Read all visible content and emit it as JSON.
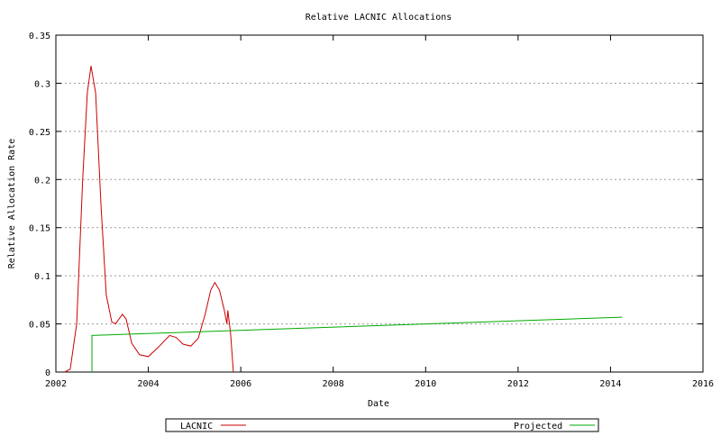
{
  "chart_data": {
    "type": "line",
    "title": "Relative LACNIC Allocations",
    "x_label": "Date",
    "y_label": "Relative Allocation Rate",
    "xlim": [
      2002,
      2016
    ],
    "xticks": [
      2002,
      2004,
      2006,
      2008,
      2010,
      2012,
      2014,
      2016
    ],
    "ylim": [
      0,
      0.35
    ],
    "yticks": [
      0,
      0.05,
      0.1,
      0.15,
      0.2,
      0.25,
      0.3,
      0.35
    ],
    "grid": true,
    "legend": "bottom",
    "series": [
      {
        "name": "LACNIC",
        "color": "#cc0000",
        "x": [
          2002.19,
          2002.31,
          2002.45,
          2002.58,
          2002.68,
          2002.76,
          2002.86,
          2002.98,
          2003.09,
          2003.21,
          2003.29,
          2003.44,
          2003.52,
          2003.64,
          2003.81,
          2004.0,
          2004.2,
          2004.46,
          2004.6,
          2004.75,
          2004.92,
          2005.08,
          2005.23,
          2005.35,
          2005.44,
          2005.54,
          2005.64,
          2005.7,
          2005.72,
          2005.78,
          2005.84
        ],
        "values": [
          0,
          0.003,
          0.05,
          0.2,
          0.29,
          0.318,
          0.29,
          0.17,
          0.08,
          0.052,
          0.05,
          0.06,
          0.055,
          0.03,
          0.018,
          0.016,
          0.025,
          0.038,
          0.036,
          0.029,
          0.027,
          0.035,
          0.06,
          0.085,
          0.093,
          0.085,
          0.065,
          0.05,
          0.064,
          0.04,
          0
        ]
      },
      {
        "name": "Projected",
        "color": "#00aa00",
        "x": [
          2002.78,
          2002.78,
          2014.25
        ],
        "values": [
          0,
          0.038,
          0.057
        ]
      }
    ]
  }
}
